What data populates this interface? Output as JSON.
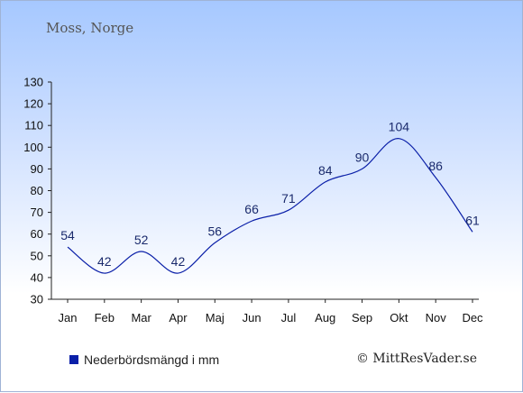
{
  "location_title": "Moss, Norge",
  "legend_label": "Nederbördsmängd i mm",
  "credit": "© MittResVader.se",
  "colors": {
    "series": "#0a1fa8",
    "label": "#1a2a6c"
  },
  "chart_data": {
    "type": "line",
    "categories": [
      "Jan",
      "Feb",
      "Mar",
      "Apr",
      "Maj",
      "Jun",
      "Jul",
      "Aug",
      "Sep",
      "Okt",
      "Nov",
      "Dec"
    ],
    "values": [
      54,
      42,
      52,
      42,
      56,
      66,
      71,
      84,
      90,
      104,
      86,
      61
    ],
    "data_labels": [
      "54",
      "42",
      "52",
      "42",
      "56",
      "66",
      "71",
      "84",
      "90",
      "104",
      "86",
      "61"
    ],
    "ylim": [
      30,
      130
    ],
    "yticks": [
      30,
      40,
      50,
      60,
      70,
      80,
      90,
      100,
      110,
      120,
      130
    ],
    "grid": false,
    "legend_placement": "bottom-left"
  }
}
